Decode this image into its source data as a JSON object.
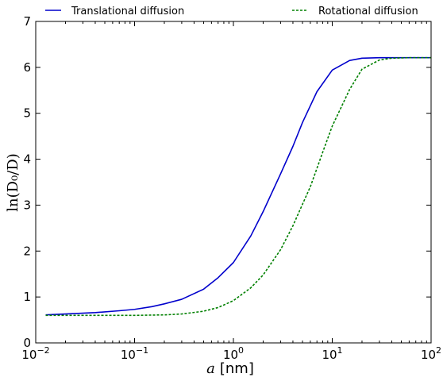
{
  "chart_data": {
    "type": "line",
    "xscale": "log",
    "xlim": [
      0.01,
      100
    ],
    "ylim": [
      0,
      7
    ],
    "xlabel_var": "a",
    "xlabel_unit": "[nm]",
    "ylabel": "ln(D₀/D)",
    "xticks": [
      {
        "value": 0.01,
        "base": "10",
        "exp": "−2"
      },
      {
        "value": 0.1,
        "base": "10",
        "exp": "−1"
      },
      {
        "value": 1,
        "base": "10",
        "exp": "0"
      },
      {
        "value": 10,
        "base": "10",
        "exp": "1"
      },
      {
        "value": 100,
        "base": "10",
        "exp": "2"
      }
    ],
    "yticks": [
      0,
      1,
      2,
      3,
      4,
      5,
      6,
      7
    ],
    "legend_position": "top, above plot",
    "series": [
      {
        "name": "Translational diffusion",
        "color": "#0000cc",
        "style": "solid",
        "x": [
          0.0126,
          0.02,
          0.04,
          0.07,
          0.1,
          0.15,
          0.2,
          0.3,
          0.5,
          0.7,
          1.0,
          1.5,
          2.0,
          3.0,
          4.0,
          5.0,
          7.0,
          10.0,
          15.0,
          20.0,
          30.0,
          40.0,
          60.0,
          100.0
        ],
        "y": [
          0.61,
          0.63,
          0.66,
          0.7,
          0.73,
          0.79,
          0.85,
          0.95,
          1.17,
          1.42,
          1.75,
          2.33,
          2.86,
          3.68,
          4.28,
          4.8,
          5.47,
          5.94,
          6.15,
          6.2,
          6.21,
          6.21,
          6.21,
          6.21
        ]
      },
      {
        "name": "Rotational diffusion",
        "color": "#008000",
        "style": "dotted",
        "x": [
          0.0126,
          0.02,
          0.05,
          0.1,
          0.2,
          0.3,
          0.5,
          0.7,
          1.0,
          1.5,
          2.0,
          3.0,
          4.0,
          5.0,
          6.0,
          7.0,
          8.0,
          10.0,
          15.0,
          20.0,
          30.0,
          40.0,
          60.0,
          100.0
        ],
        "y": [
          0.6,
          0.6,
          0.6,
          0.6,
          0.61,
          0.63,
          0.69,
          0.77,
          0.92,
          1.2,
          1.48,
          2.03,
          2.55,
          3.02,
          3.4,
          3.8,
          4.15,
          4.72,
          5.52,
          5.96,
          6.16,
          6.2,
          6.21,
          6.21
        ]
      }
    ]
  }
}
